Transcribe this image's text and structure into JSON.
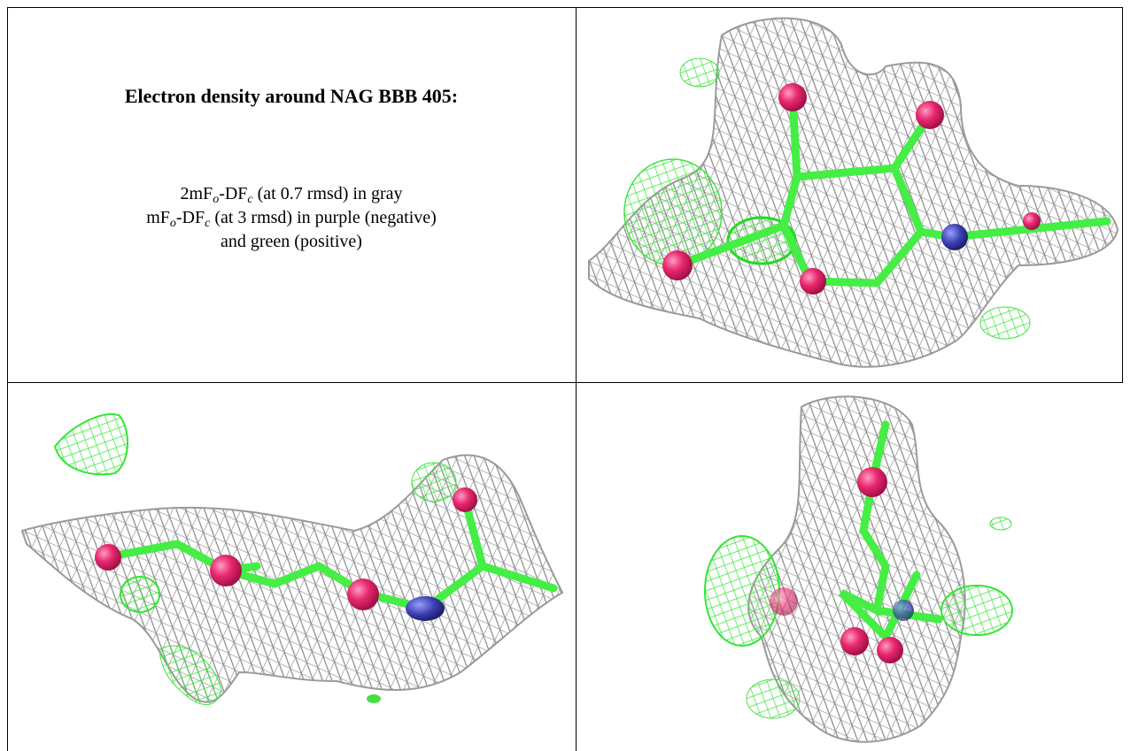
{
  "title": "Electron density around NAG BBB 405:",
  "caption": {
    "lines": [
      [
        "2mF",
        "o",
        "-DF",
        "c",
        " (at 0.7 rmsd) in gray"
      ],
      [
        "mF",
        "o",
        "-DF",
        "c",
        " (at 3 rmsd) in purple (negative)"
      ],
      [
        "and green (positive)"
      ]
    ]
  }
}
